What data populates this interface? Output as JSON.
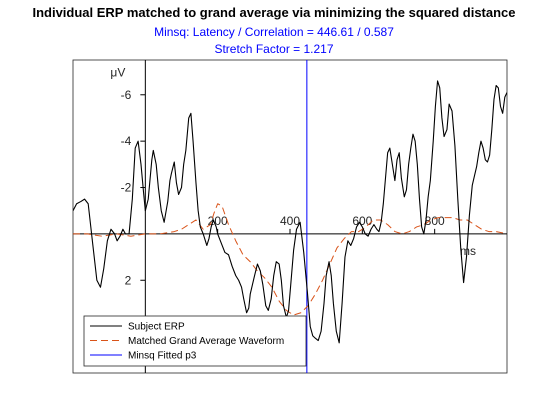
{
  "chart_data": {
    "type": "line",
    "title": "Individual ERP matched to grand average via minimizing the squared distance",
    "subtitle_lines": [
      "Minsq: Latency / Correlation = 446.61 / 0.587",
      "Stretch Factor = 1.217"
    ],
    "xlabel": "ms",
    "ylabel": "μV",
    "xlim": [
      -200,
      1000
    ],
    "ylim": [
      -7.5,
      6
    ],
    "y_reversed": true,
    "grid": false,
    "legend_position": "bottom-left",
    "x_ticks": [
      {
        "value": 200,
        "label": "200"
      },
      {
        "value": 400,
        "label": "400"
      },
      {
        "value": 600,
        "label": "600"
      },
      {
        "value": 800,
        "label": "800"
      }
    ],
    "y_ticks": [
      {
        "value": -6,
        "label": "-6"
      },
      {
        "value": -4,
        "label": "-4"
      },
      {
        "value": -2,
        "label": "-2"
      },
      {
        "value": 2,
        "label": "2"
      }
    ],
    "series": [
      {
        "name": "Subject ERP",
        "color": "#000000",
        "style": "solid",
        "x": [
          -200,
          -190,
          -178,
          -168,
          -158,
          -145,
          -134,
          -124,
          -115,
          -105,
          -95,
          -85,
          -78,
          -70,
          -62,
          -55,
          -45,
          -36,
          -28,
          -20,
          -12,
          -5,
          0,
          8,
          18,
          22,
          30,
          36,
          44,
          52,
          62,
          68,
          72,
          80,
          86,
          92,
          100,
          106,
          112,
          120,
          126,
          132,
          140,
          146,
          152,
          160,
          166,
          170,
          176,
          182,
          188,
          196,
          200,
          210,
          220,
          230,
          240,
          250,
          258,
          266,
          272,
          280,
          286,
          290,
          296,
          302,
          310,
          318,
          325,
          333,
          340,
          348,
          355,
          362,
          370,
          376,
          382,
          390,
          396,
          402,
          410,
          418,
          428,
          438,
          448,
          456,
          463,
          470,
          478,
          486,
          494,
          500,
          508,
          514,
          520,
          528,
          536,
          544,
          552,
          560,
          568,
          576,
          584,
          592,
          600,
          608,
          616,
          624,
          632,
          640,
          646,
          652,
          658,
          664,
          670,
          676,
          684,
          690,
          696,
          702,
          708,
          716,
          722,
          728,
          734,
          740,
          746,
          752,
          758,
          764,
          770,
          776,
          782,
          788,
          796,
          802,
          808,
          814,
          820,
          826,
          834,
          840,
          848,
          856,
          864,
          872,
          880,
          888,
          896,
          904,
          910,
          916,
          922,
          928,
          934,
          940,
          946,
          952,
          958,
          964,
          970,
          976,
          982,
          988,
          994,
          1000
        ],
        "y": [
          -1.0,
          -1.3,
          -1.4,
          -1.5,
          -1.3,
          0.5,
          2.0,
          2.3,
          1.5,
          0.3,
          -0.2,
          0.0,
          0.3,
          0.1,
          -0.2,
          0.0,
          0.0,
          -1.5,
          -3.7,
          -4.0,
          -3.0,
          -1.8,
          -1.0,
          -1.5,
          -3.2,
          -3.6,
          -3.0,
          -2.0,
          -1.0,
          -0.5,
          -1.4,
          -2.3,
          -2.6,
          -3.1,
          -2.2,
          -1.7,
          -2.0,
          -3.0,
          -3.6,
          -5.0,
          -5.2,
          -4.0,
          -2.2,
          -1.0,
          -0.3,
          0.0,
          0.3,
          0.5,
          0.2,
          -0.3,
          -0.6,
          -0.3,
          0.0,
          0.4,
          0.8,
          0.9,
          1.4,
          1.8,
          2.0,
          2.3,
          2.8,
          3.4,
          3.2,
          2.6,
          2.2,
          1.8,
          1.3,
          1.6,
          2.2,
          3.1,
          3.3,
          2.8,
          1.8,
          1.2,
          1.3,
          2.0,
          3.1,
          3.6,
          3.3,
          2.2,
          0.7,
          -0.2,
          -0.5,
          0.8,
          2.5,
          4.0,
          4.4,
          4.5,
          4.6,
          4.2,
          3.0,
          1.8,
          1.2,
          1.8,
          3.0,
          4.2,
          4.7,
          3.0,
          1.0,
          0.3,
          0.5,
          0.2,
          -0.3,
          -0.5,
          -0.3,
          0.0,
          0.1,
          -0.2,
          -0.4,
          -0.2,
          -0.1,
          -0.5,
          -1.3,
          -2.4,
          -3.5,
          -3.7,
          -2.9,
          -2.3,
          -3.2,
          -3.5,
          -2.4,
          -1.6,
          -1.9,
          -3.0,
          -3.7,
          -4.3,
          -4.0,
          -3.0,
          -1.5,
          -0.3,
          0.0,
          -0.6,
          -1.6,
          -2.3,
          -4.0,
          -5.5,
          -6.6,
          -6.3,
          -5.0,
          -4.2,
          -4.5,
          -5.6,
          -5.3,
          -3.8,
          -1.5,
          0.6,
          2.1,
          1.0,
          -0.8,
          -2.1,
          -2.5,
          -2.9,
          -3.5,
          -4.0,
          -3.7,
          -3.2,
          -3.1,
          -3.4,
          -4.5,
          -5.8,
          -6.4,
          -6.3,
          -5.5,
          -5.2,
          -5.9,
          -6.1
        ]
      },
      {
        "name": "Matched Grand Average Waveform",
        "color": "#D95319",
        "style": "dashed",
        "x": [
          -200,
          -160,
          -120,
          -80,
          -40,
          0,
          40,
          80,
          100,
          120,
          140,
          160,
          180,
          190,
          200,
          212,
          230,
          250,
          270,
          290,
          310,
          330,
          350,
          370,
          390,
          410,
          430,
          450,
          470,
          490,
          510,
          530,
          550,
          570,
          590,
          610,
          630,
          650,
          670,
          690,
          710,
          730,
          750,
          770,
          790,
          810,
          830,
          850,
          870,
          890,
          910,
          930,
          950,
          970,
          1000
        ],
        "y": [
          0.0,
          0.0,
          0.1,
          0.0,
          0.1,
          0.0,
          0.0,
          -0.1,
          -0.2,
          -0.4,
          -0.6,
          -0.2,
          -0.4,
          -0.9,
          -1.3,
          -1.2,
          -0.4,
          0.3,
          0.9,
          1.2,
          1.6,
          1.9,
          2.3,
          2.9,
          3.3,
          3.5,
          3.4,
          3.1,
          2.6,
          2.0,
          1.3,
          0.6,
          0.2,
          -0.1,
          -0.1,
          -0.3,
          -0.6,
          -0.6,
          -0.4,
          -0.1,
          0.0,
          -0.1,
          -0.3,
          -0.4,
          -0.6,
          -0.7,
          -0.7,
          -0.7,
          -0.6,
          -0.6,
          -0.4,
          -0.2,
          -0.1,
          -0.1,
          0.0
        ]
      },
      {
        "name": "Minsq Fitted p3",
        "color": "#0000FF",
        "style": "solid",
        "x": [
          446.61,
          446.61
        ],
        "y": [
          -7.5,
          6
        ]
      }
    ]
  }
}
